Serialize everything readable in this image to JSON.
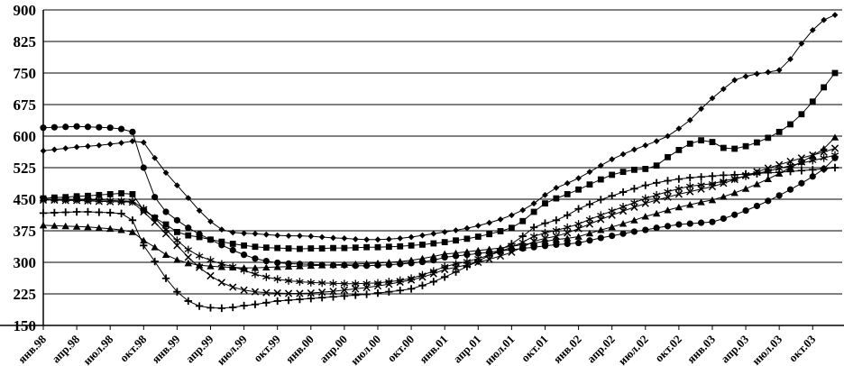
{
  "chart": {
    "title": "",
    "background": "#ffffff",
    "axis_color": "#000000",
    "line_color": "#000000",
    "y_axis": {
      "min": 150,
      "max": 900,
      "step": 75,
      "grid": true,
      "tick_labels": [
        "900",
        "825",
        "750",
        "675",
        "600",
        "525",
        "450",
        "375",
        "300",
        "225",
        "150"
      ]
    },
    "x_axis": {
      "months_per_tick": 3,
      "tick_labels": [
        "янв.98",
        "апр.98",
        "июл.98",
        "окт.98",
        "янв.99",
        "апр.99",
        "июл.99",
        "окт.99",
        "янв.00",
        "апр.00",
        "июл.00",
        "окт.00",
        "янв.01",
        "апр.01",
        "июл.01",
        "окт.01",
        "янв.02",
        "апр.02",
        "июл.02",
        "окт.02",
        "янв.03",
        "апр.03",
        "июл.03",
        "окт.03"
      ]
    },
    "legend": {
      "visible": false
    }
  },
  "chart_data": {
    "type": "line",
    "title": "",
    "xlabel": "",
    "ylabel": "",
    "ylim": [
      150,
      900
    ],
    "x_range": [
      "янв.98",
      "дек.03"
    ],
    "points_per_series": 72,
    "grid": true,
    "legend_position": "none",
    "series": [
      {
        "name": "circle-series",
        "marker": "circle",
        "values": [
          620,
          621,
          622,
          623,
          622,
          621,
          620,
          617,
          610,
          525,
          455,
          420,
          400,
          382,
          367,
          354,
          341,
          329,
          318,
          309,
          303,
          299,
          297,
          296,
          295,
          294,
          293,
          293,
          292,
          292,
          293,
          294,
          296,
          298,
          301,
          305,
          312,
          315,
          318,
          321,
          324,
          327,
          330,
          333,
          336,
          339,
          342,
          344,
          346,
          352,
          358,
          363,
          368,
          373,
          377,
          382,
          386,
          390,
          392,
          394,
          396,
          404,
          413,
          423,
          434,
          446,
          459,
          473,
          488,
          504,
          522,
          548
        ]
      },
      {
        "name": "diamond-series",
        "marker": "diamond",
        "values": [
          565,
          568,
          571,
          574,
          576,
          578,
          581,
          584,
          588,
          585,
          548,
          513,
          483,
          453,
          423,
          397,
          378,
          371,
          369,
          368,
          366,
          364,
          363,
          363,
          362,
          360,
          358,
          357,
          355,
          354,
          354,
          355,
          357,
          360,
          364,
          368,
          372,
          376,
          381,
          387,
          394,
          402,
          412,
          424,
          440,
          460,
          477,
          488,
          500,
          515,
          530,
          545,
          557,
          568,
          578,
          588,
          600,
          618,
          638,
          665,
          690,
          712,
          733,
          742,
          748,
          752,
          757,
          783,
          820,
          852,
          876,
          888
        ]
      },
      {
        "name": "square-series",
        "marker": "square",
        "values": [
          452,
          454,
          455,
          457,
          458,
          460,
          462,
          464,
          462,
          424,
          406,
          390,
          372,
          364,
          360,
          354,
          349,
          344,
          340,
          337,
          335,
          334,
          333,
          332,
          333,
          333,
          334,
          334,
          335,
          336,
          336,
          337,
          338,
          340,
          342,
          345,
          348,
          352,
          356,
          361,
          367,
          374,
          382,
          398,
          420,
          440,
          452,
          462,
          473,
          485,
          497,
          508,
          515,
          520,
          522,
          530,
          550,
          567,
          582,
          590,
          586,
          572,
          570,
          576,
          585,
          596,
          610,
          628,
          652,
          682,
          716,
          750
        ]
      },
      {
        "name": "triangle-series",
        "marker": "triangle",
        "values": [
          388,
          387,
          386,
          385,
          384,
          382,
          380,
          377,
          372,
          352,
          336,
          318,
          306,
          298,
          293,
          291,
          289,
          288,
          287,
          287,
          288,
          289,
          290,
          291,
          292,
          293,
          294,
          295,
          296,
          297,
          298,
          300,
          302,
          305,
          309,
          314,
          320,
          322,
          325,
          328,
          331,
          334,
          338,
          342,
          346,
          350,
          354,
          357,
          361,
          369,
          377,
          384,
          392,
          400,
          409,
          416,
          424,
          431,
          437,
          443,
          448,
          456,
          465,
          475,
          486,
          498,
          511,
          525,
          539,
          553,
          570,
          597
        ]
      },
      {
        "name": "plus-series",
        "marker": "plus",
        "values": [
          417,
          418,
          419,
          420,
          420,
          419,
          418,
          416,
          400,
          340,
          302,
          262,
          230,
          208,
          196,
          192,
          191,
          193,
          197,
          200,
          204,
          208,
          210,
          212,
          214,
          216,
          218,
          220,
          222,
          224,
          227,
          230,
          233,
          237,
          245,
          254,
          265,
          277,
          290,
          303,
          316,
          330,
          344,
          362,
          383,
          393,
          400,
          412,
          427,
          438,
          449,
          458,
          467,
          475,
          483,
          489,
          494,
          498,
          501,
          503,
          505,
          507,
          508,
          510,
          511,
          513,
          514,
          516,
          518,
          520,
          522,
          525
        ]
      },
      {
        "name": "x-series",
        "marker": "x",
        "values": [
          448,
          448,
          447,
          447,
          446,
          445,
          444,
          444,
          443,
          420,
          395,
          368,
          340,
          312,
          288,
          268,
          252,
          241,
          234,
          230,
          228,
          227,
          226,
          226,
          227,
          229,
          231,
          234,
          237,
          240,
          244,
          248,
          253,
          258,
          265,
          273,
          283,
          288,
          294,
          300,
          307,
          315,
          324,
          336,
          350,
          357,
          362,
          370,
          380,
          391,
          402,
          412,
          422,
          431,
          440,
          448,
          455,
          462,
          468,
          474,
          480,
          488,
          497,
          506,
          515,
          524,
          532,
          540,
          548,
          555,
          562,
          571
        ]
      },
      {
        "name": "star-series",
        "marker": "star",
        "values": [
          450,
          450,
          449,
          449,
          448,
          448,
          447,
          446,
          445,
          428,
          405,
          378,
          352,
          330,
          315,
          305,
          296,
          290,
          281,
          272,
          265,
          260,
          256,
          254,
          252,
          251,
          250,
          249,
          249,
          250,
          251,
          254,
          257,
          262,
          270,
          279,
          290,
          296,
          302,
          309,
          317,
          326,
          336,
          348,
          362,
          370,
          376,
          383,
          391,
          402,
          412,
          422,
          432,
          442,
          452,
          460,
          468,
          475,
          481,
          484,
          487,
          493,
          499,
          505,
          511,
          517,
          523,
          530,
          536,
          542,
          548,
          555
        ]
      }
    ]
  }
}
